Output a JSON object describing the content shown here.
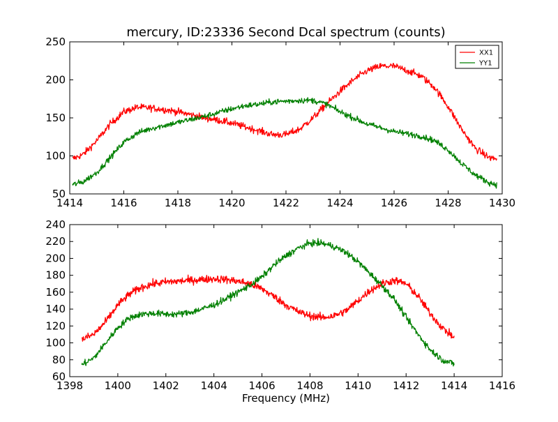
{
  "chart_data": [
    {
      "type": "line",
      "title": "mercury, ID:23336 Second Dcal spectrum (counts)",
      "xlabel": "",
      "ylabel": "",
      "xlim": [
        1414,
        1430
      ],
      "ylim": [
        50,
        250
      ],
      "x_ticks": [
        "1414",
        "1416",
        "1418",
        "1420",
        "1422",
        "1424",
        "1426",
        "1428",
        "1430"
      ],
      "y_ticks": [
        "50",
        "100",
        "150",
        "200",
        "250"
      ],
      "grid": false,
      "legend": {
        "placement": "top-right",
        "entries": [
          "XX1",
          "YY1"
        ]
      },
      "series": [
        {
          "name": "XX1",
          "color": "#ff0000",
          "noise": 6,
          "x": [
            1414.1,
            1414.5,
            1415.0,
            1415.5,
            1416.0,
            1416.5,
            1417.0,
            1417.5,
            1418.0,
            1418.5,
            1419.0,
            1419.5,
            1420.0,
            1420.5,
            1421.0,
            1421.5,
            1422.0,
            1422.5,
            1423.0,
            1423.5,
            1424.0,
            1424.5,
            1425.0,
            1425.5,
            1426.0,
            1426.5,
            1427.0,
            1427.5,
            1428.0,
            1428.5,
            1429.0,
            1429.5,
            1429.8
          ],
          "values": [
            96,
            102,
            120,
            142,
            158,
            164,
            163,
            161,
            158,
            154,
            150,
            147,
            143,
            138,
            133,
            128,
            128,
            135,
            150,
            168,
            185,
            200,
            212,
            218,
            218,
            212,
            205,
            190,
            165,
            135,
            110,
            98,
            96
          ]
        },
        {
          "name": "YY1",
          "color": "#008000",
          "noise": 5,
          "x": [
            1414.1,
            1414.5,
            1415.0,
            1415.5,
            1416.0,
            1416.5,
            1417.0,
            1417.5,
            1418.0,
            1418.5,
            1419.0,
            1419.5,
            1420.0,
            1420.5,
            1421.0,
            1421.5,
            1422.0,
            1422.5,
            1423.0,
            1423.5,
            1424.0,
            1424.5,
            1425.0,
            1425.5,
            1426.0,
            1426.5,
            1427.0,
            1427.5,
            1428.0,
            1428.5,
            1429.0,
            1429.5,
            1429.8
          ],
          "values": [
            62,
            66,
            78,
            98,
            118,
            130,
            136,
            140,
            144,
            148,
            152,
            157,
            162,
            166,
            168,
            171,
            172,
            173,
            173,
            168,
            158,
            150,
            142,
            137,
            132,
            129,
            126,
            120,
            108,
            90,
            75,
            65,
            62
          ]
        }
      ]
    },
    {
      "type": "line",
      "title": "",
      "xlabel": "Frequency (MHz)",
      "ylabel": "",
      "xlim": [
        1398,
        1416
      ],
      "ylim": [
        60,
        240
      ],
      "x_ticks": [
        "1398",
        "1400",
        "1402",
        "1404",
        "1406",
        "1408",
        "1410",
        "1412",
        "1414",
        "1416"
      ],
      "y_ticks": [
        "60",
        "80",
        "100",
        "120",
        "140",
        "160",
        "180",
        "200",
        "220",
        "240"
      ],
      "grid": false,
      "series": [
        {
          "color": "#ff0000",
          "noise": 6,
          "x": [
            1398.5,
            1399.0,
            1399.5,
            1400.0,
            1400.5,
            1401.0,
            1401.5,
            1402.0,
            1402.5,
            1403.0,
            1403.5,
            1404.0,
            1404.5,
            1405.0,
            1405.5,
            1406.0,
            1406.5,
            1407.0,
            1407.5,
            1408.0,
            1408.5,
            1409.0,
            1409.5,
            1410.0,
            1410.5,
            1411.0,
            1411.5,
            1412.0,
            1412.5,
            1413.0,
            1413.5,
            1414.0
          ],
          "values": [
            104,
            110,
            125,
            145,
            158,
            166,
            170,
            172,
            173,
            174,
            175,
            176,
            175,
            173,
            170,
            164,
            155,
            145,
            137,
            132,
            130,
            132,
            138,
            150,
            162,
            170,
            174,
            170,
            155,
            135,
            118,
            106
          ]
        },
        {
          "color": "#008000",
          "noise": 5,
          "x": [
            1398.5,
            1399.0,
            1399.5,
            1400.0,
            1400.5,
            1401.0,
            1401.5,
            1402.0,
            1402.5,
            1403.0,
            1403.5,
            1404.0,
            1404.5,
            1405.0,
            1405.5,
            1406.0,
            1406.5,
            1407.0,
            1407.5,
            1408.0,
            1408.5,
            1409.0,
            1409.5,
            1410.0,
            1410.5,
            1411.0,
            1411.5,
            1412.0,
            1412.5,
            1413.0,
            1413.5,
            1414.0
          ],
          "values": [
            74,
            82,
            100,
            118,
            130,
            134,
            135,
            134,
            134,
            136,
            140,
            145,
            152,
            160,
            168,
            178,
            192,
            203,
            212,
            218,
            218,
            214,
            207,
            196,
            182,
            168,
            152,
            130,
            110,
            92,
            80,
            75
          ]
        }
      ]
    }
  ]
}
